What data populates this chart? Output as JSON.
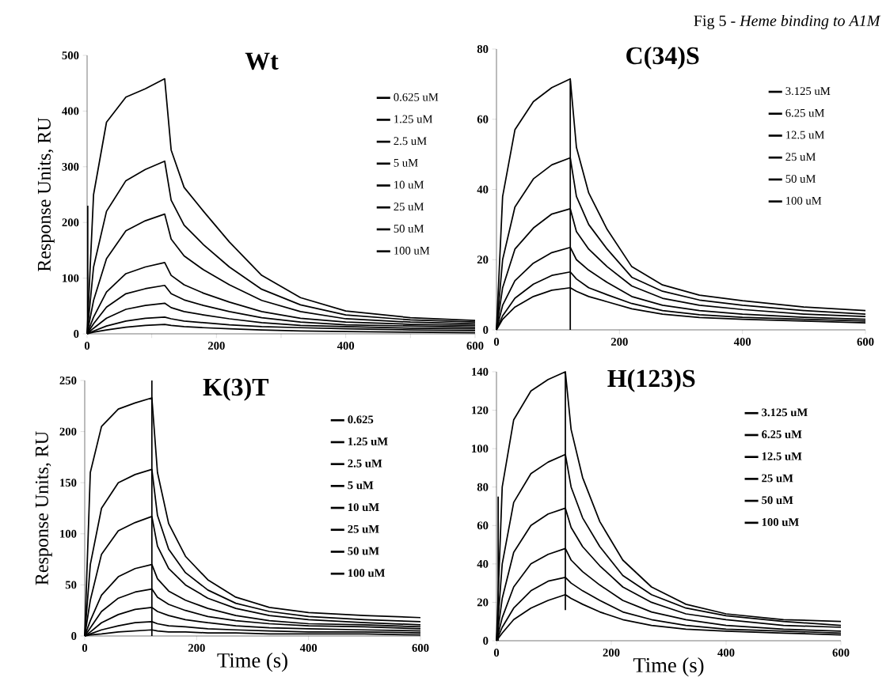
{
  "chart_data": [
    {
      "type": "line",
      "title": "Wt",
      "ylabel": "Response Units, RU",
      "xlim": [
        0,
        600
      ],
      "ylim": [
        0,
        500
      ],
      "xticks": [
        0,
        {
          "value": 100,
          "label": null
        },
        200,
        {
          "value": 300,
          "label": null
        },
        400,
        {
          "value": 500,
          "label": null
        },
        600
      ],
      "yticks": [
        0,
        100,
        200,
        300,
        400,
        500
      ],
      "legend": "top right",
      "x": [
        0,
        10,
        30,
        60,
        90,
        120,
        130,
        150,
        180,
        220,
        270,
        330,
        400,
        500,
        600
      ],
      "series": [
        {
          "name": "0.625 uM",
          "color": "#000000",
          "values": [
            0,
            3,
            7,
            12,
            15,
            17,
            15,
            13,
            11,
            9,
            7,
            5,
            4,
            3,
            2
          ]
        },
        {
          "name": "1.25 uM",
          "color": "#000000",
          "values": [
            0,
            5,
            14,
            23,
            28,
            30,
            27,
            23,
            20,
            16,
            13,
            11,
            9,
            7,
            6
          ]
        },
        {
          "name": "2.5 uM",
          "color": "#000000",
          "values": [
            0,
            10,
            28,
            44,
            51,
            55,
            47,
            40,
            34,
            27,
            20,
            15,
            13,
            10,
            9
          ]
        },
        {
          "name": "5 uM",
          "color": "#000000",
          "values": [
            0,
            18,
            48,
            72,
            81,
            87,
            72,
            61,
            51,
            40,
            29,
            21,
            16,
            14,
            12
          ]
        },
        {
          "name": "10 uM",
          "color": "#000000",
          "values": [
            0,
            30,
            75,
            108,
            120,
            128,
            105,
            88,
            73,
            57,
            40,
            28,
            21,
            17,
            15
          ]
        },
        {
          "name": "25 uM",
          "color": "#000000",
          "values": [
            0,
            60,
            135,
            185,
            203,
            215,
            170,
            140,
            115,
            88,
            60,
            40,
            27,
            21,
            18
          ]
        },
        {
          "name": "50 uM",
          "color": "#000000",
          "values": [
            0,
            120,
            220,
            275,
            295,
            310,
            240,
            195,
            160,
            120,
            80,
            52,
            34,
            25,
            21
          ]
        },
        {
          "name": "100 uM",
          "color": "#000000",
          "values": [
            0,
            250,
            380,
            425,
            440,
            458,
            330,
            263,
            220,
            165,
            105,
            65,
            41,
            29,
            24
          ]
        },
        {
          "color": "#000000",
          "x": [
            1,
            1
          ],
          "values": [
            0,
            230
          ]
        }
      ]
    },
    {
      "type": "line",
      "title": "C(34)S",
      "annotations": [
        "Fig 5  -  *Heme binding to A1M*"
      ],
      "xlim": [
        0,
        600
      ],
      "ylim": [
        0,
        80
      ],
      "xticks": [
        0,
        200,
        400,
        600
      ],
      "yticks": [
        0,
        20,
        40,
        60,
        80
      ],
      "legend": "top right",
      "x": [
        0,
        10,
        30,
        60,
        90,
        120,
        130,
        150,
        180,
        220,
        270,
        330,
        400,
        500,
        600
      ],
      "series": [
        {
          "name": "3.125 uM",
          "color": "#000000",
          "values": [
            0,
            3,
            6.5,
            9.5,
            11.3,
            12,
            11,
            9.5,
            8,
            6,
            4.5,
            3.5,
            3,
            2.5,
            2
          ]
        },
        {
          "name": "6.25 uM",
          "color": "#000000",
          "values": [
            0,
            4,
            9,
            13,
            15.5,
            16.5,
            14.5,
            12,
            10,
            7.5,
            5.5,
            4.3,
            3.6,
            3,
            2.5
          ]
        },
        {
          "name": "12.5 uM",
          "color": "#000000",
          "values": [
            0,
            7,
            14,
            19,
            22,
            23.5,
            20,
            17,
            13.5,
            9.5,
            7,
            5.5,
            4.5,
            3.6,
            3
          ]
        },
        {
          "name": "25 uM",
          "color": "#000000",
          "values": [
            0,
            12,
            23,
            29,
            33,
            34.5,
            28,
            23,
            18,
            12.5,
            9,
            7,
            5.8,
            4.5,
            3.8
          ]
        },
        {
          "name": "50 uM",
          "color": "#000000",
          "values": [
            0,
            20,
            35,
            43,
            47,
            49,
            38,
            30,
            23,
            15,
            11,
            8.5,
            7,
            5.5,
            4.5
          ]
        },
        {
          "name": "100 uM",
          "color": "#000000",
          "values": [
            0,
            38,
            57,
            65,
            69,
            71.5,
            52,
            39,
            28.6,
            18,
            12.8,
            9.9,
            8.3,
            6.5,
            5.5
          ]
        },
        {
          "color": "#000000",
          "x": [
            120,
            120
          ],
          "values": [
            0,
            71
          ]
        }
      ]
    },
    {
      "type": "line",
      "title": "K(3)T",
      "ylabel": "Response Units, RU",
      "xlabel": "Time (s)",
      "xlim": [
        0,
        600
      ],
      "ylim": [
        0,
        250
      ],
      "xticks": [
        0,
        200,
        400,
        600
      ],
      "yticks": [
        0,
        50,
        100,
        150,
        200,
        250
      ],
      "legend": "top right",
      "x": [
        0,
        10,
        30,
        60,
        90,
        120,
        130,
        150,
        180,
        220,
        270,
        330,
        400,
        500,
        600
      ],
      "series": [
        {
          "name": "0.625",
          "color": "#000000",
          "values": [
            0,
            1,
            2,
            4,
            5,
            6,
            5,
            4,
            4,
            3,
            3,
            2,
            2,
            2,
            1
          ]
        },
        {
          "name": "1.25 uM",
          "color": "#000000",
          "values": [
            0,
            2,
            6,
            10,
            13,
            14,
            12,
            10,
            9,
            7,
            6,
            5,
            4,
            4,
            3
          ]
        },
        {
          "name": "2.5 uM",
          "color": "#000000",
          "values": [
            0,
            4,
            13,
            21,
            26,
            28,
            24,
            20,
            16,
            13,
            10,
            8,
            7,
            6,
            5
          ]
        },
        {
          "name": "5 uM",
          "color": "#000000",
          "values": [
            0,
            8,
            24,
            37,
            43,
            46,
            38,
            31,
            25,
            19,
            15,
            12,
            10,
            9,
            7
          ]
        },
        {
          "name": "10 uM",
          "color": "#000000",
          "values": [
            0,
            15,
            40,
            58,
            66,
            70,
            56,
            44,
            35,
            27,
            20,
            15,
            12,
            11,
            9
          ]
        },
        {
          "name": "25 uM",
          "color": "#000000",
          "values": [
            0,
            35,
            80,
            103,
            111,
            117,
            88,
            66,
            50,
            37,
            27,
            20,
            16,
            13,
            11
          ]
        },
        {
          "name": "50 uM",
          "color": "#000000",
          "values": [
            0,
            70,
            125,
            150,
            158,
            163,
            118,
            85,
            62,
            45,
            32,
            24,
            19,
            16,
            14
          ]
        },
        {
          "name": "100 uM",
          "color": "#000000",
          "values": [
            0,
            160,
            205,
            222,
            228,
            233,
            160,
            110,
            78,
            55,
            38,
            28,
            23,
            20,
            18
          ]
        },
        {
          "color": "#000000",
          "x": [
            120,
            120
          ],
          "values": [
            0,
            250
          ]
        }
      ]
    },
    {
      "type": "line",
      "title": "H(123)S",
      "xlabel": "Time (s)",
      "xlim": [
        0,
        600
      ],
      "ylim": [
        0,
        140
      ],
      "xticks": [
        0,
        200,
        400,
        600
      ],
      "yticks": [
        0,
        20,
        40,
        60,
        80,
        100,
        120,
        140
      ],
      "legend": "top right",
      "x": [
        0,
        10,
        30,
        60,
        90,
        120,
        130,
        150,
        180,
        220,
        270,
        330,
        400,
        500,
        600
      ],
      "series": [
        {
          "name": "3.125 uM",
          "color": "#000000",
          "values": [
            0,
            4,
            11,
            17,
            21,
            24,
            22,
            19,
            15,
            11,
            8,
            6,
            5,
            4,
            3
          ]
        },
        {
          "name": "6.25 uM",
          "color": "#000000",
          "values": [
            0,
            7,
            17,
            26,
            31,
            33,
            30,
            26,
            21,
            15,
            11,
            8,
            6,
            5,
            4
          ]
        },
        {
          "name": "12.5 uM",
          "color": "#000000",
          "values": [
            0,
            12,
            28,
            40,
            45,
            48,
            42,
            36,
            29,
            21,
            15,
            11,
            8,
            6,
            5
          ]
        },
        {
          "name": "25 uM",
          "color": "#000000",
          "values": [
            0,
            22,
            46,
            60,
            66,
            69,
            59,
            49,
            39,
            28,
            20,
            14,
            11,
            8,
            7
          ]
        },
        {
          "name": "50 uM",
          "color": "#000000",
          "values": [
            0,
            40,
            72,
            87,
            93,
            97,
            80,
            64,
            49,
            34,
            24,
            17,
            13,
            10,
            8
          ]
        },
        {
          "name": "100 uM",
          "color": "#000000",
          "values": [
            0,
            80,
            115,
            130,
            136,
            140,
            110,
            85,
            62,
            42,
            28,
            19,
            14,
            11,
            10
          ]
        },
        {
          "color": "#000000",
          "x": [
            3,
            3,
            60,
            120,
            120
          ],
          "values": [
            0,
            75,
            null,
            16,
            140
          ]
        }
      ]
    }
  ]
}
